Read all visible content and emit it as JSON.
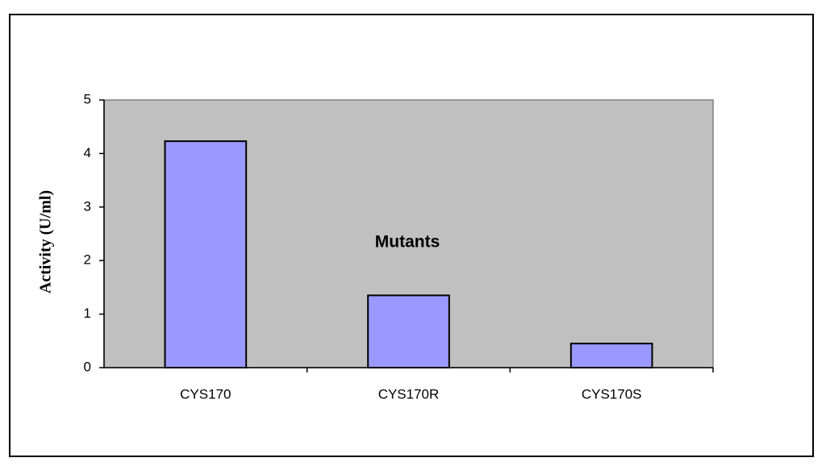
{
  "chart_data": {
    "type": "bar",
    "y_label": "Activity (U/ml)",
    "annotation": "Mutants",
    "categories": [
      "CYS170",
      "CYS170R",
      "CYS170S"
    ],
    "values": [
      4.23,
      1.35,
      0.45
    ],
    "color": "#9999ff",
    "ylim": [
      0,
      5
    ],
    "yticks": [
      0,
      1,
      2,
      3,
      4,
      5
    ],
    "grid": false,
    "plot_background": "#c0c0c0"
  }
}
